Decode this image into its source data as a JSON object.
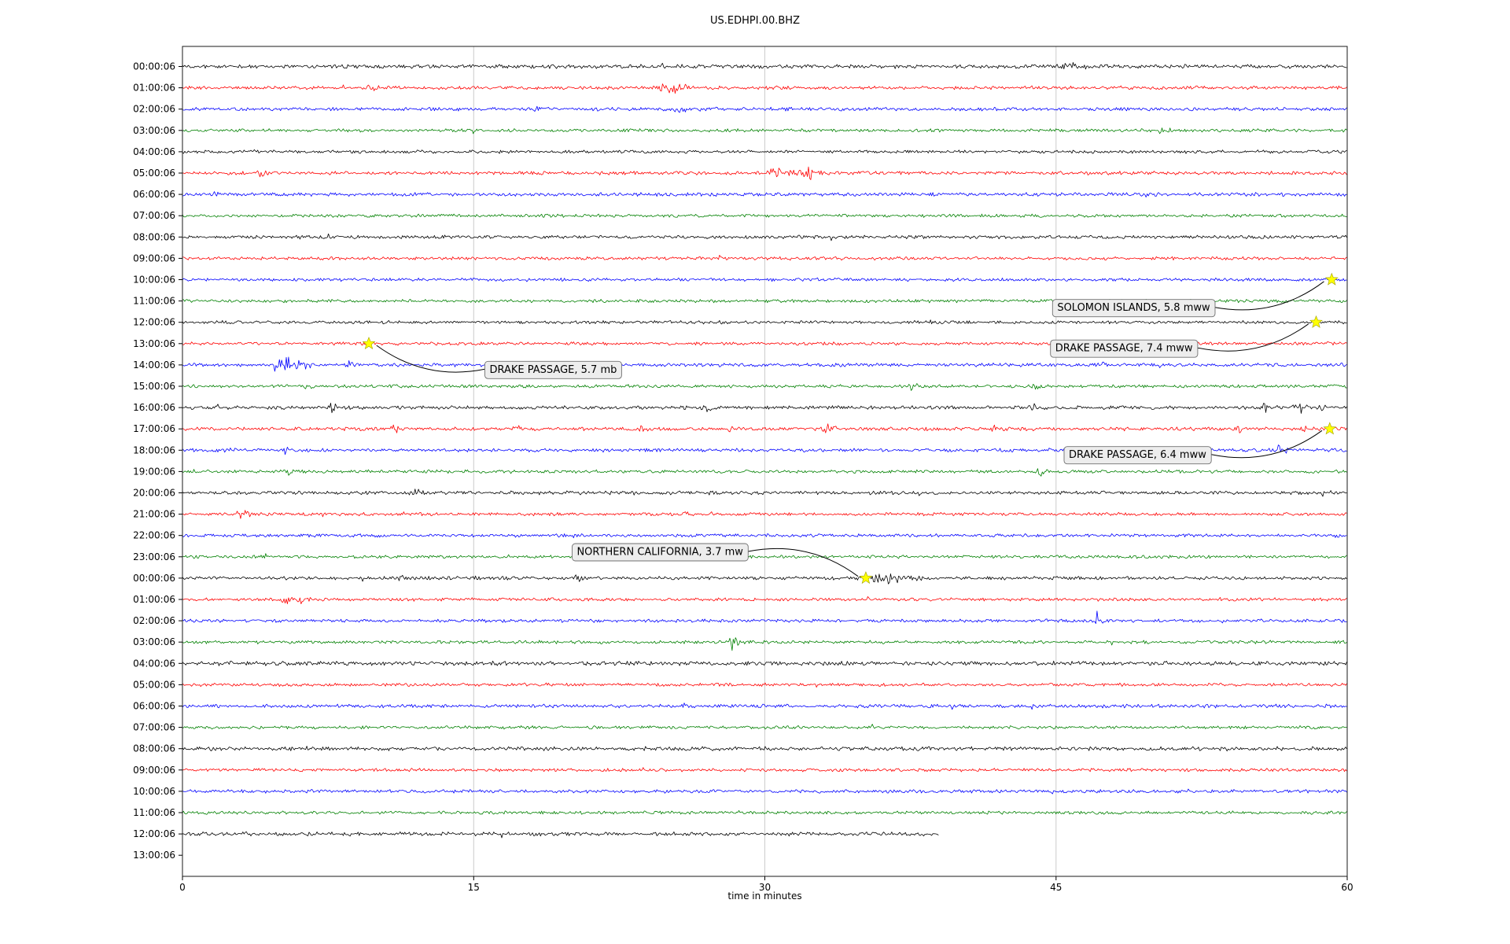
{
  "chart_data": {
    "type": "line",
    "subtype": "helicorder-seismogram",
    "title": "US.EDHPI.00.BHZ",
    "xlabel": "time in minutes",
    "xlim": [
      0,
      60
    ],
    "x_ticks": [
      0,
      15,
      30,
      45,
      60
    ],
    "grid": "vertical-gridlines",
    "trace_colors_cycle": [
      "#000000",
      "#ff0000",
      "#0000ff",
      "#008000"
    ],
    "marker_color": "#ffff00",
    "rows": [
      {
        "t": "00:00:06",
        "c": "#000000",
        "a": 2.2,
        "b": [
          [
            45.5,
            2.5,
            1.0
          ],
          [
            24.6,
            1.5,
            0.4
          ]
        ]
      },
      {
        "t": "01:00:06",
        "c": "#ff0000",
        "a": 2.0,
        "b": [
          [
            9.7,
            3,
            0.5
          ],
          [
            24.8,
            9,
            0.28
          ],
          [
            25.3,
            4,
            0.7
          ]
        ]
      },
      {
        "t": "02:00:06",
        "c": "#0000ff",
        "a": 2.0,
        "b": [
          [
            18.2,
            2.5,
            0.4
          ],
          [
            25.4,
            2,
            0.5
          ]
        ]
      },
      {
        "t": "03:00:06",
        "c": "#008000",
        "a": 1.8,
        "b": [
          [
            50.5,
            4,
            0.35
          ]
        ]
      },
      {
        "t": "04:00:06",
        "c": "#000000",
        "a": 1.8,
        "b": [
          [
            3.5,
            1.5,
            0.5
          ]
        ]
      },
      {
        "t": "05:00:06",
        "c": "#ff0000",
        "a": 2.0,
        "b": [
          [
            4.0,
            2.5,
            0.3
          ],
          [
            30.6,
            4,
            0.9
          ],
          [
            32.3,
            7,
            0.35
          ],
          [
            31.4,
            3,
            1.3
          ]
        ]
      },
      {
        "t": "06:00:06",
        "c": "#0000ff",
        "a": 2.0,
        "b": [
          [
            1.5,
            2,
            0.4
          ]
        ]
      },
      {
        "t": "07:00:06",
        "c": "#008000",
        "a": 1.8,
        "b": []
      },
      {
        "t": "08:00:06",
        "c": "#000000",
        "a": 1.9,
        "b": [
          [
            7.5,
            1.5,
            0.4
          ]
        ]
      },
      {
        "t": "09:00:06",
        "c": "#ff0000",
        "a": 1.8,
        "b": []
      },
      {
        "t": "10:00:06",
        "c": "#0000ff",
        "a": 1.8,
        "b": []
      },
      {
        "t": "11:00:06",
        "c": "#008000",
        "a": 1.8,
        "b": []
      },
      {
        "t": "12:00:06",
        "c": "#000000",
        "a": 1.8,
        "b": []
      },
      {
        "t": "13:00:06",
        "c": "#ff0000",
        "a": 1.8,
        "b": []
      },
      {
        "t": "14:00:06",
        "c": "#0000ff",
        "a": 2.0,
        "b": [
          [
            4.8,
            10,
            0.4
          ],
          [
            5.5,
            6,
            0.7
          ],
          [
            6.2,
            3,
            0.6
          ],
          [
            8.6,
            3,
            0.4
          ],
          [
            47.3,
            6,
            0.35
          ]
        ]
      },
      {
        "t": "15:00:06",
        "c": "#008000",
        "a": 1.8,
        "b": [
          [
            6.4,
            3,
            0.3
          ],
          [
            37.6,
            4,
            0.35
          ],
          [
            44.0,
            2,
            0.4
          ]
        ]
      },
      {
        "t": "16:00:06",
        "c": "#000000",
        "a": 2.0,
        "b": [
          [
            7.7,
            4,
            0.3
          ],
          [
            27.0,
            4,
            0.4
          ],
          [
            43.5,
            3,
            0.8
          ],
          [
            55.8,
            4,
            0.5
          ],
          [
            57.5,
            5,
            0.5
          ],
          [
            58.6,
            4,
            0.4
          ]
        ]
      },
      {
        "t": "17:00:06",
        "c": "#ff0000",
        "a": 2.0,
        "b": [
          [
            10.8,
            4,
            0.3
          ],
          [
            17.2,
            3,
            0.3
          ],
          [
            23.5,
            4,
            0.3
          ],
          [
            28.2,
            2.5,
            0.3
          ],
          [
            33.2,
            6,
            0.4
          ],
          [
            41.8,
            3,
            0.3
          ],
          [
            54.5,
            3.5,
            0.3
          ],
          [
            57.8,
            3,
            0.3
          ]
        ]
      },
      {
        "t": "18:00:06",
        "c": "#0000ff",
        "a": 2.0,
        "b": [
          [
            2.3,
            6,
            0.28
          ],
          [
            5.3,
            3,
            0.3
          ],
          [
            56.5,
            5,
            0.4
          ]
        ]
      },
      {
        "t": "19:00:06",
        "c": "#008000",
        "a": 1.8,
        "b": [
          [
            5.5,
            4.5,
            0.35
          ],
          [
            44.2,
            3.5,
            0.4
          ]
        ]
      },
      {
        "t": "20:00:06",
        "c": "#000000",
        "a": 2.0,
        "b": [
          [
            12.0,
            2.5,
            0.4
          ],
          [
            27.2,
            4,
            0.3
          ],
          [
            58.8,
            3,
            0.3
          ]
        ]
      },
      {
        "t": "21:00:06",
        "c": "#ff0000",
        "a": 1.8,
        "b": [
          [
            3.0,
            5,
            0.4
          ],
          [
            25.9,
            2.5,
            0.3
          ]
        ]
      },
      {
        "t": "22:00:06",
        "c": "#0000ff",
        "a": 1.8,
        "b": [
          [
            59.3,
            2.5,
            0.3
          ]
        ]
      },
      {
        "t": "23:00:06",
        "c": "#008000",
        "a": 1.8,
        "b": [
          [
            4.2,
            2.5,
            0.3
          ]
        ]
      },
      {
        "t": "00:00:06",
        "c": "#000000",
        "a": 2.0,
        "b": [
          [
            11.2,
            3,
            0.4
          ],
          [
            15.1,
            3,
            0.4
          ],
          [
            20.3,
            2.5,
            0.3
          ],
          [
            35.9,
            7,
            0.6
          ],
          [
            36.9,
            4,
            0.9
          ]
        ]
      },
      {
        "t": "01:00:06",
        "c": "#ff0000",
        "a": 1.8,
        "b": [
          [
            5.2,
            4,
            0.4
          ],
          [
            6.1,
            4,
            0.4
          ]
        ]
      },
      {
        "t": "02:00:06",
        "c": "#0000ff",
        "a": 1.8,
        "b": [
          [
            47.0,
            4,
            0.4
          ]
        ]
      },
      {
        "t": "03:00:06",
        "c": "#008000",
        "a": 1.8,
        "b": [
          [
            28.3,
            8,
            0.35
          ]
        ]
      },
      {
        "t": "04:00:06",
        "c": "#000000",
        "a": 2.4,
        "b": []
      },
      {
        "t": "05:00:06",
        "c": "#ff0000",
        "a": 1.8,
        "b": []
      },
      {
        "t": "06:00:06",
        "c": "#0000ff",
        "a": 2.0,
        "b": []
      },
      {
        "t": "07:00:06",
        "c": "#008000",
        "a": 1.8,
        "b": []
      },
      {
        "t": "08:00:06",
        "c": "#000000",
        "a": 2.2,
        "b": []
      },
      {
        "t": "09:00:06",
        "c": "#ff0000",
        "a": 1.8,
        "b": []
      },
      {
        "t": "10:00:06",
        "c": "#0000ff",
        "a": 1.9,
        "b": []
      },
      {
        "t": "11:00:06",
        "c": "#008000",
        "a": 1.8,
        "b": []
      },
      {
        "t": "12:00:06",
        "c": "#000000",
        "a": 2.2,
        "e": 39,
        "b": []
      },
      {
        "t": "13:00:06",
        "c": "#ff0000",
        "a": 0,
        "e": 0,
        "b": []
      }
    ],
    "events": [
      {
        "label": "SOLOMON ISLANDS, 5.8 mww",
        "row": 10,
        "minute": 59.2,
        "label_row": 11.3,
        "label_minute": 49.0,
        "bow": 1
      },
      {
        "label": "DRAKE PASSAGE, 7.4 mww",
        "row": 12,
        "minute": 58.4,
        "label_row": 13.2,
        "label_minute": 48.5,
        "bow": 1
      },
      {
        "label": "DRAKE PASSAGE, 5.7 mb",
        "row": 13,
        "minute": 9.6,
        "label_row": 14.2,
        "label_minute": 19.1,
        "bow": -1
      },
      {
        "label": "DRAKE PASSAGE, 6.4 mww",
        "row": 17,
        "minute": 59.1,
        "label_row": 18.2,
        "label_minute": 49.2,
        "bow": 1
      },
      {
        "label": "NORTHERN CALIFORNIA, 3.7 mw",
        "row": 24,
        "minute": 35.2,
        "label_row": 22.75,
        "label_minute": 24.6,
        "bow": -1
      }
    ]
  }
}
